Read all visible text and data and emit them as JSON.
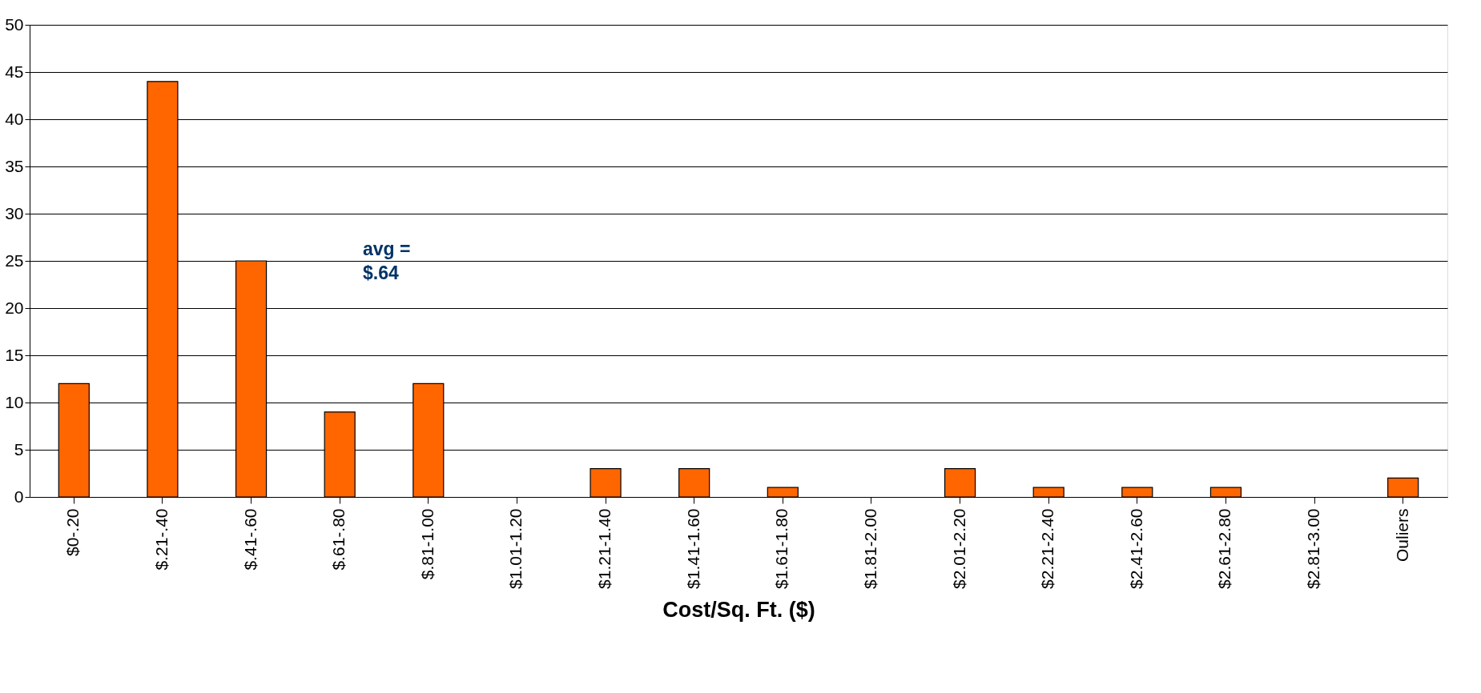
{
  "chart_data": {
    "type": "bar",
    "xlabel": "Cost/Sq. Ft. ($)",
    "categories": [
      "$0-.20",
      "$.21-.40",
      "$.41-.60",
      "$.61-.80",
      "$.81-1.00",
      "$1.01-1.20",
      "$1.21-1.40",
      "$1.41-1.60",
      "$1.61-1.80",
      "$1.81-2.00",
      "$2.01-2.20",
      "$2.21-2.40",
      "$2.41-2.60",
      "$2.61-2.80",
      "$2.81-3.00",
      "Ouliers"
    ],
    "values": [
      12,
      44,
      25,
      9,
      12,
      null,
      3,
      3,
      1,
      null,
      3,
      1,
      1,
      1,
      null,
      2
    ],
    "color": "#ff6600",
    "ylim": [
      0,
      50
    ],
    "yticks": [
      0,
      5,
      10,
      15,
      20,
      25,
      30,
      35,
      40,
      45,
      50
    ],
    "grid": "y",
    "annotations": [
      "avg =\n$.64"
    ]
  }
}
